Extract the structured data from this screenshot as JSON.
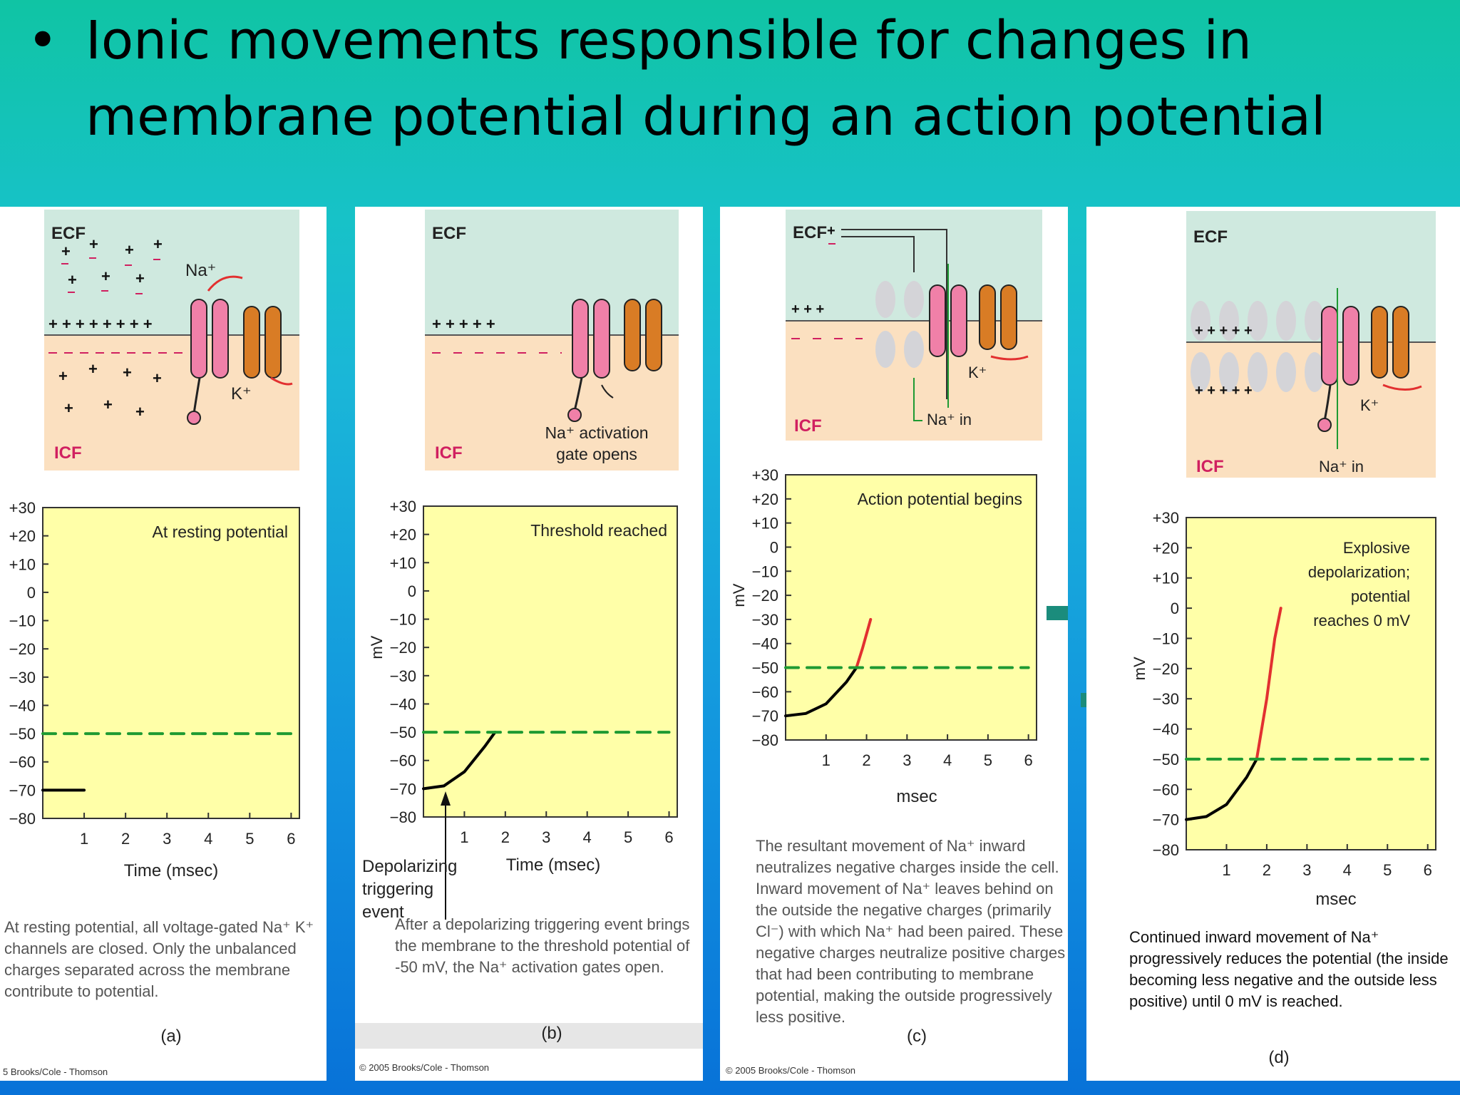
{
  "slide": {
    "bullet": "•",
    "title_line1": "Ionic movements responsible for changes in",
    "title_line2": "membrane potential during an action potential"
  },
  "colors": {
    "ecf": "#cfe9df",
    "icf": "#fbe0c0",
    "plot_bg": "#ffffa8",
    "na_channel": "#f080a8",
    "k_channel": "#d97c25",
    "threshold": "#1e9a32",
    "black_curve": "#000000",
    "red_curve": "#e23030"
  },
  "diagram_labels": {
    "ecf": "ECF",
    "icf": "ICF",
    "na_plus": "Na⁺",
    "k_plus": "K⁺",
    "na_in": "Na⁺ in",
    "gate_opens": "Na⁺ activation\ngate opens"
  },
  "axis": {
    "ticks_y": [
      "+30",
      "+20",
      "+10",
      "0",
      "−10",
      "−20",
      "−30",
      "−40",
      "−50",
      "−60",
      "−70",
      "−80"
    ],
    "ticks_x": [
      "1",
      "2",
      "3",
      "4",
      "5",
      "6"
    ],
    "ylabel": "mV",
    "xlabel_time": "Time (msec)",
    "xlabel_msec": "msec",
    "ylim": [
      -80,
      30
    ],
    "xlim": [
      0,
      6.2
    ],
    "threshold": -50
  },
  "panels": [
    {
      "letter": "(a)",
      "plot_title": "At resting potential",
      "caption": "At resting potential, all voltage-gated Na⁺ K⁺ channels are closed. Only the unbalanced charges separated across the membrane contribute to potential.",
      "copyright": "5 Brooks/Cole - Thomson"
    },
    {
      "letter": "(b)",
      "plot_title": "Threshold reached",
      "caption": "After a depolarizing triggering event brings the membrane to the threshold potential of -50 mV, the Na⁺ activation gates open.",
      "annotation": "Depolarizing\ntriggering event",
      "copyright": "© 2005 Brooks/Cole - Thomson"
    },
    {
      "letter": "(c)",
      "plot_title": "Action potential begins",
      "caption": "The resultant movement of Na⁺ inward neutralizes negative charges inside the cell. Inward movement of Na⁺ leaves behind on the outside the negative charges (primarily Cl⁻) with which Na⁺ had been paired. These negative charges neutralize positive charges that had been contributing to membrane potential, making the outside progressively less positive.",
      "copyright": "© 2005 Brooks/Cole - Thomson"
    },
    {
      "letter": "(d)",
      "plot_title": "Explosive\ndepolarization;\npotential\nreaches 0 mV",
      "caption": "Continued inward movement of Na⁺ progressively reduces the potential (the inside becoming less negative and the outside less positive) until 0 mV is reached."
    }
  ],
  "chart_data": [
    {
      "type": "line",
      "title": "At resting potential",
      "xlabel": "Time (msec)",
      "ylabel": "mV",
      "xlim": [
        0,
        6
      ],
      "ylim": [
        -80,
        30
      ],
      "series": [
        {
          "values": [
            [
              0,
              -70
            ],
            [
              1,
              -70
            ]
          ]
        },
        {
          "name": "Threshold",
          "values": [
            [
              0,
              -50
            ],
            [
              6,
              -50
            ]
          ]
        }
      ]
    },
    {
      "type": "line",
      "title": "Threshold reached",
      "xlabel": "Time (msec)",
      "ylabel": "mV",
      "xlim": [
        0,
        6
      ],
      "ylim": [
        -80,
        30
      ],
      "series": [
        {
          "values": [
            [
              0,
              -70
            ],
            [
              0.5,
              -69
            ],
            [
              1,
              -64
            ],
            [
              1.5,
              -55
            ],
            [
              1.75,
              -50
            ]
          ]
        },
        {
          "name": "Threshold",
          "values": [
            [
              0,
              -50
            ],
            [
              6,
              -50
            ]
          ]
        }
      ]
    },
    {
      "type": "line",
      "title": "Action potential begins",
      "xlabel": "msec",
      "ylabel": "mV",
      "xlim": [
        0,
        6
      ],
      "ylim": [
        -80,
        30
      ],
      "series": [
        {
          "values": [
            [
              0,
              -70
            ],
            [
              0.5,
              -69
            ],
            [
              1,
              -65
            ],
            [
              1.5,
              -56
            ],
            [
              1.75,
              -50
            ]
          ]
        },
        {
          "values": [
            [
              1.75,
              -50
            ],
            [
              1.9,
              -42
            ],
            [
              2.1,
              -30
            ]
          ]
        },
        {
          "name": "Threshold",
          "values": [
            [
              0,
              -50
            ],
            [
              6,
              -50
            ]
          ]
        }
      ]
    },
    {
      "type": "line",
      "title": "Explosive depolarization; potential reaches 0 mV",
      "xlabel": "msec",
      "ylabel": "mV",
      "xlim": [
        0,
        6
      ],
      "ylim": [
        -80,
        30
      ],
      "series": [
        {
          "values": [
            [
              0,
              -70
            ],
            [
              0.5,
              -69
            ],
            [
              1,
              -65
            ],
            [
              1.5,
              -56
            ],
            [
              1.75,
              -50
            ]
          ]
        },
        {
          "values": [
            [
              1.75,
              -50
            ],
            [
              2,
              -30
            ],
            [
              2.2,
              -10
            ],
            [
              2.35,
              0
            ]
          ]
        },
        {
          "name": "Threshold",
          "values": [
            [
              0,
              -50
            ],
            [
              6,
              -50
            ]
          ]
        }
      ]
    }
  ]
}
